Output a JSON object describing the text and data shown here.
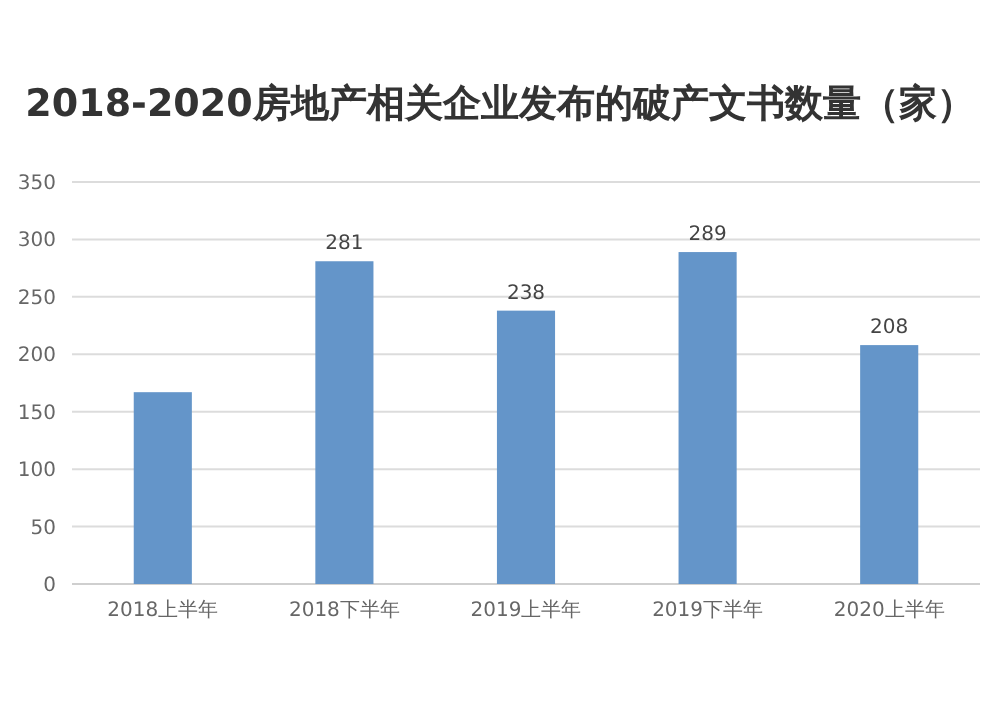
{
  "chart_data": {
    "type": "bar",
    "title": "2018-2020房地产相关企业发布的破产文书数量（家）",
    "categories": [
      "2018上半年",
      "2018下半年",
      "2019上半年",
      "2019下半年",
      "2020上半年"
    ],
    "values": [
      167,
      281,
      238,
      289,
      208
    ],
    "value_labels": [
      null,
      "281",
      "238",
      "289",
      "208"
    ],
    "color": "#6495c9",
    "ylim": [
      0,
      350
    ],
    "yticks": [
      0,
      50,
      100,
      150,
      200,
      250,
      300,
      350
    ],
    "grid": "y"
  }
}
